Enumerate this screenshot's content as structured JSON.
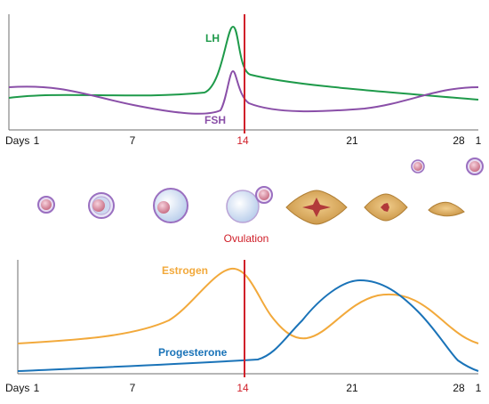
{
  "top_chart": {
    "labels": {
      "lh": "LH",
      "fsh": "FSH"
    },
    "axis": {
      "prefix": "Days",
      "ticks": [
        {
          "day": 1,
          "label": "1"
        },
        {
          "day": 7,
          "label": "7"
        },
        {
          "day": 14,
          "label": "14"
        },
        {
          "day": 21,
          "label": "21"
        },
        {
          "day": 28,
          "label": "28"
        },
        {
          "day": 29,
          "label": "1"
        }
      ]
    }
  },
  "bottom_chart": {
    "labels": {
      "estrogen": "Estrogen",
      "progesterone": "Progesterone"
    },
    "axis": {
      "prefix": "Days",
      "ticks": [
        {
          "day": 1,
          "label": "1"
        },
        {
          "day": 7,
          "label": "7"
        },
        {
          "day": 14,
          "label": "14"
        },
        {
          "day": 21,
          "label": "21"
        },
        {
          "day": 28,
          "label": "28"
        },
        {
          "day": 29,
          "label": "1"
        }
      ]
    }
  },
  "ovulation": {
    "label": "Ovulation",
    "day": 14
  },
  "colors": {
    "lh": "#1e9a4a",
    "fsh": "#8a4fa8",
    "estrogen": "#f2a93b",
    "progesterone": "#1a73b8",
    "ovulation_line": "#d0202a",
    "axis": "#6e6e6e",
    "follicle_core": "#d98ca3",
    "follicle_ring": "#9a6fc0",
    "follicle_fluid": "#d8e4f4",
    "corpus_luteum": "#dcb069",
    "corpus_luteum_center": "#b23a3a"
  },
  "chart_data": [
    {
      "type": "line",
      "x_unit": "day",
      "xlim": [
        1,
        29
      ],
      "series": [
        {
          "name": "LH",
          "x": [
            1,
            4,
            7,
            10,
            12,
            13,
            13.6,
            14,
            14.5,
            16,
            20,
            24,
            27,
            29
          ],
          "y": [
            0.38,
            0.41,
            0.4,
            0.41,
            0.6,
            0.98,
            0.95,
            0.45,
            0.37,
            0.33,
            0.28,
            0.27,
            0.24,
            0.2
          ]
        },
        {
          "name": "FSH",
          "x": [
            1,
            4,
            7,
            10,
            12,
            13.4,
            14,
            15,
            18,
            22,
            26,
            29
          ],
          "y": [
            0.23,
            0.18,
            0.05,
            -0.08,
            -0.12,
            0.24,
            0.02,
            -0.09,
            -0.12,
            -0.08,
            0.08,
            0.23
          ]
        }
      ]
    },
    {
      "type": "line",
      "x_unit": "day",
      "xlim": [
        1,
        29
      ],
      "series": [
        {
          "name": "Estrogen",
          "x": [
            1,
            4,
            7,
            10,
            12,
            13.5,
            15,
            17,
            19,
            22,
            25,
            27,
            29
          ],
          "y": [
            0.27,
            0.3,
            0.36,
            0.5,
            0.75,
            0.98,
            0.65,
            0.33,
            0.33,
            0.55,
            0.72,
            0.5,
            0.28
          ]
        },
        {
          "name": "Progesterone",
          "x": [
            1,
            4,
            7,
            10,
            13,
            15,
            17,
            19,
            21,
            23,
            25,
            27,
            29
          ],
          "y": [
            0.0,
            0.02,
            0.04,
            0.06,
            0.08,
            0.13,
            0.45,
            0.82,
            0.95,
            0.88,
            0.62,
            0.28,
            0.0
          ]
        }
      ]
    }
  ]
}
